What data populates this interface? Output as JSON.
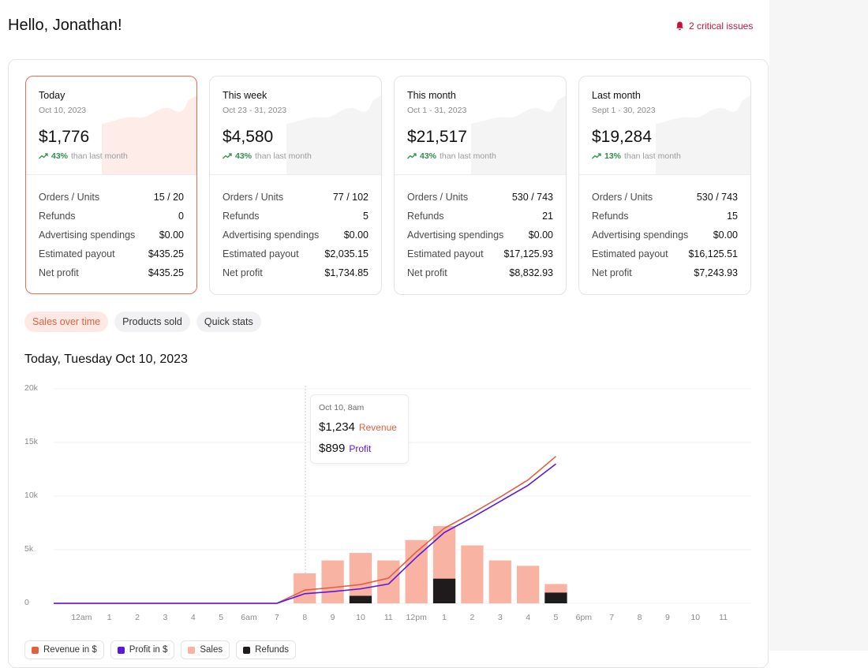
{
  "header": {
    "greeting": "Hello, Jonathan!",
    "alert": "2 critical issues"
  },
  "cards": [
    {
      "title": "Today",
      "date": "Oct 10, 2023",
      "value": "$1,776",
      "change": "43%",
      "change_text": "than last month",
      "rows": [
        {
          "label": "Orders / Units",
          "value": "15 / 20"
        },
        {
          "label": "Refunds",
          "value": 0
        },
        {
          "label": "Advertising spendings",
          "value": "$0.00"
        },
        {
          "label": "Estimated payout",
          "value": "$435.25"
        },
        {
          "label": "Net profit",
          "value": "$435.25"
        }
      ]
    },
    {
      "title": "This week",
      "date": "Oct 23 - 31, 2023",
      "value": "$4,580",
      "change": "43%",
      "change_text": "than last month",
      "rows": [
        {
          "label": "Orders / Units",
          "value": "77 / 102"
        },
        {
          "label": "Refunds",
          "value": 5
        },
        {
          "label": "Advertising spendings",
          "value": "$0.00"
        },
        {
          "label": "Estimated payout",
          "value": "$2,035.15"
        },
        {
          "label": "Net profit",
          "value": "$1,734.85"
        }
      ]
    },
    {
      "title": "This month",
      "date": "Oct 1 - 31, 2023",
      "value": "$21,517",
      "change": "43%",
      "change_text": "than last month",
      "rows": [
        {
          "label": "Orders / Units",
          "value": "530 / 743"
        },
        {
          "label": "Refunds",
          "value": 21
        },
        {
          "label": "Advertising spendings",
          "value": "$0.00"
        },
        {
          "label": "Estimated payout",
          "value": "$17,125.93"
        },
        {
          "label": "Net profit",
          "value": "$8,832.93"
        }
      ]
    },
    {
      "title": "Last month",
      "date": "Sept 1 - 30, 2023",
      "value": "$19,284",
      "change": "13%",
      "change_text": "than last month",
      "rows": [
        {
          "label": "Orders / Units",
          "value": "530 / 743"
        },
        {
          "label": "Refunds",
          "value": 15
        },
        {
          "label": "Advertising spendings",
          "value": "$0.00"
        },
        {
          "label": "Estimated payout",
          "value": "$16,125.51"
        },
        {
          "label": "Net profit",
          "value": "$7,243.93"
        }
      ]
    }
  ],
  "tabs": [
    "Sales over time",
    "Products sold",
    "Quick stats"
  ],
  "chart_data": {
    "type": "bar",
    "title": "Today, Tuesday Oct 10, 2023",
    "categories": [
      null,
      "12am",
      "1",
      "2",
      "3",
      "4",
      "5",
      "6am",
      "7",
      "8",
      "9",
      "10",
      "11",
      "12pm",
      "1",
      "2",
      "3",
      "4",
      "5",
      "6pm",
      "7",
      "8",
      "9",
      "10",
      "11"
    ],
    "series": [
      {
        "name": "Revenue in $",
        "type": "line",
        "color": "#e0603f",
        "values": [
          0,
          0,
          0,
          0,
          0,
          0,
          0,
          0,
          0,
          1234,
          1470,
          1750,
          2350,
          4800,
          7000,
          8400,
          9900,
          11500,
          13700,
          null,
          null,
          null,
          null,
          null,
          null
        ]
      },
      {
        "name": "Profit in $",
        "type": "line",
        "color": "#5b17e0",
        "values": [
          0,
          0,
          0,
          0,
          0,
          0,
          0,
          0,
          0,
          899,
          1100,
          1350,
          1800,
          4300,
          6600,
          8000,
          9500,
          11000,
          13000,
          null,
          null,
          null,
          null,
          null,
          null
        ]
      },
      {
        "name": "Sales",
        "type": "bar",
        "color": "#f8b3a3",
        "values": [
          0,
          0,
          0,
          0,
          0,
          0,
          0,
          0,
          0,
          2800,
          4000,
          4700,
          4000,
          5900,
          7200,
          5400,
          4000,
          3500,
          1800,
          null,
          null,
          null,
          null,
          null,
          null
        ]
      },
      {
        "name": "Refunds",
        "type": "bar",
        "color": "#1f1a1c",
        "values": [
          0,
          0,
          0,
          0,
          0,
          0,
          0,
          0,
          0,
          0,
          0,
          700,
          0,
          0,
          2300,
          0,
          0,
          0,
          1000,
          null,
          null,
          null,
          null,
          null,
          null
        ]
      }
    ],
    "ylim": [
      0,
      20000
    ],
    "yticks": [
      0,
      {
        "value": 5000,
        "label": "5k"
      },
      {
        "value": 10000,
        "label": "10k"
      },
      {
        "value": 15000,
        "label": "15k"
      },
      {
        "value": 20000,
        "label": "20k"
      }
    ],
    "grid": true,
    "tooltip": {
      "title": "Oct 10, 8am",
      "items": [
        {
          "value": "$1,234",
          "label": "Revenue"
        },
        {
          "value": "$899",
          "label": "Profit"
        }
      ]
    }
  }
}
